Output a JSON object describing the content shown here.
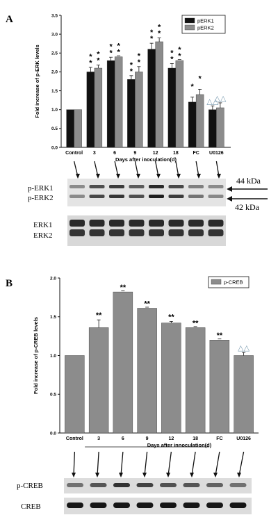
{
  "chart_data": [
    {
      "type": "bar",
      "panel": "A",
      "categories": [
        "Control",
        "3",
        "6",
        "9",
        "12",
        "18",
        "FC",
        "U0126"
      ],
      "series": [
        {
          "name": "pERK1",
          "values": [
            1.0,
            2.0,
            2.3,
            1.8,
            2.6,
            2.1,
            1.2,
            1.0
          ],
          "errors": [
            0,
            0.12,
            0.09,
            0.1,
            0.16,
            0.12,
            0.13,
            0.1
          ],
          "color": "#111111"
        },
        {
          "name": "pERK2",
          "values": [
            1.0,
            2.1,
            2.4,
            2.0,
            2.8,
            2.3,
            1.4,
            1.05
          ],
          "errors": [
            0,
            0.08,
            0.0,
            0.14,
            0.1,
            0.0,
            0.14,
            0.13
          ],
          "color": "#8c8c8c"
        }
      ],
      "annotations": {
        "pERK1": [
          "",
          "**",
          "**",
          "**",
          "**",
          "**",
          "*",
          "△△"
        ],
        "pERK2": [
          "",
          "**",
          "**",
          "**",
          "**",
          "**",
          "*",
          "△△"
        ]
      },
      "xlabel": "Days after inoculation(d)",
      "ylabel": "Fold increase of p-ERK levels",
      "ylim": [
        0,
        3.5
      ],
      "yticks": [
        "0.0",
        "0.5",
        "1.0",
        "1.5",
        "2.0",
        "2.5",
        "3.0",
        "3.5"
      ],
      "legend": "top-right"
    },
    {
      "type": "bar",
      "panel": "B",
      "categories": [
        "Control",
        "3",
        "6",
        "9",
        "12",
        "18",
        "FC",
        "U0126"
      ],
      "series": [
        {
          "name": "p-CREB",
          "values": [
            1.0,
            1.36,
            1.82,
            1.61,
            1.42,
            1.36,
            1.2,
            1.0
          ],
          "errors": [
            0,
            0.1,
            0.0,
            0.0,
            0.02,
            0.0,
            0.0,
            0.04
          ],
          "color": "#8c8c8c"
        }
      ],
      "annotations": {
        "p-CREB": [
          "",
          "**",
          "**",
          "**",
          "**",
          "**",
          "**",
          "△△"
        ]
      },
      "xlabel": "Days after innoculation(d)",
      "ylabel": "Fold increase of p-CREB levels",
      "ylim": [
        0,
        2.0
      ],
      "yticks": [
        "0.0",
        "0.5",
        "1.0",
        "1.5",
        "2.0"
      ],
      "legend": "top-right"
    }
  ],
  "panels": {
    "a_letter": "A",
    "b_letter": "B"
  },
  "blots": {
    "a_top_labels": [
      "p-ERK1",
      "p-ERK2"
    ],
    "a_bottom_labels": [
      "ERK1",
      "ERK2"
    ],
    "kda_upper": "44 kDa",
    "kda_lower": "42 kDa",
    "b_labels": [
      "p-CREB",
      "CREB"
    ]
  }
}
